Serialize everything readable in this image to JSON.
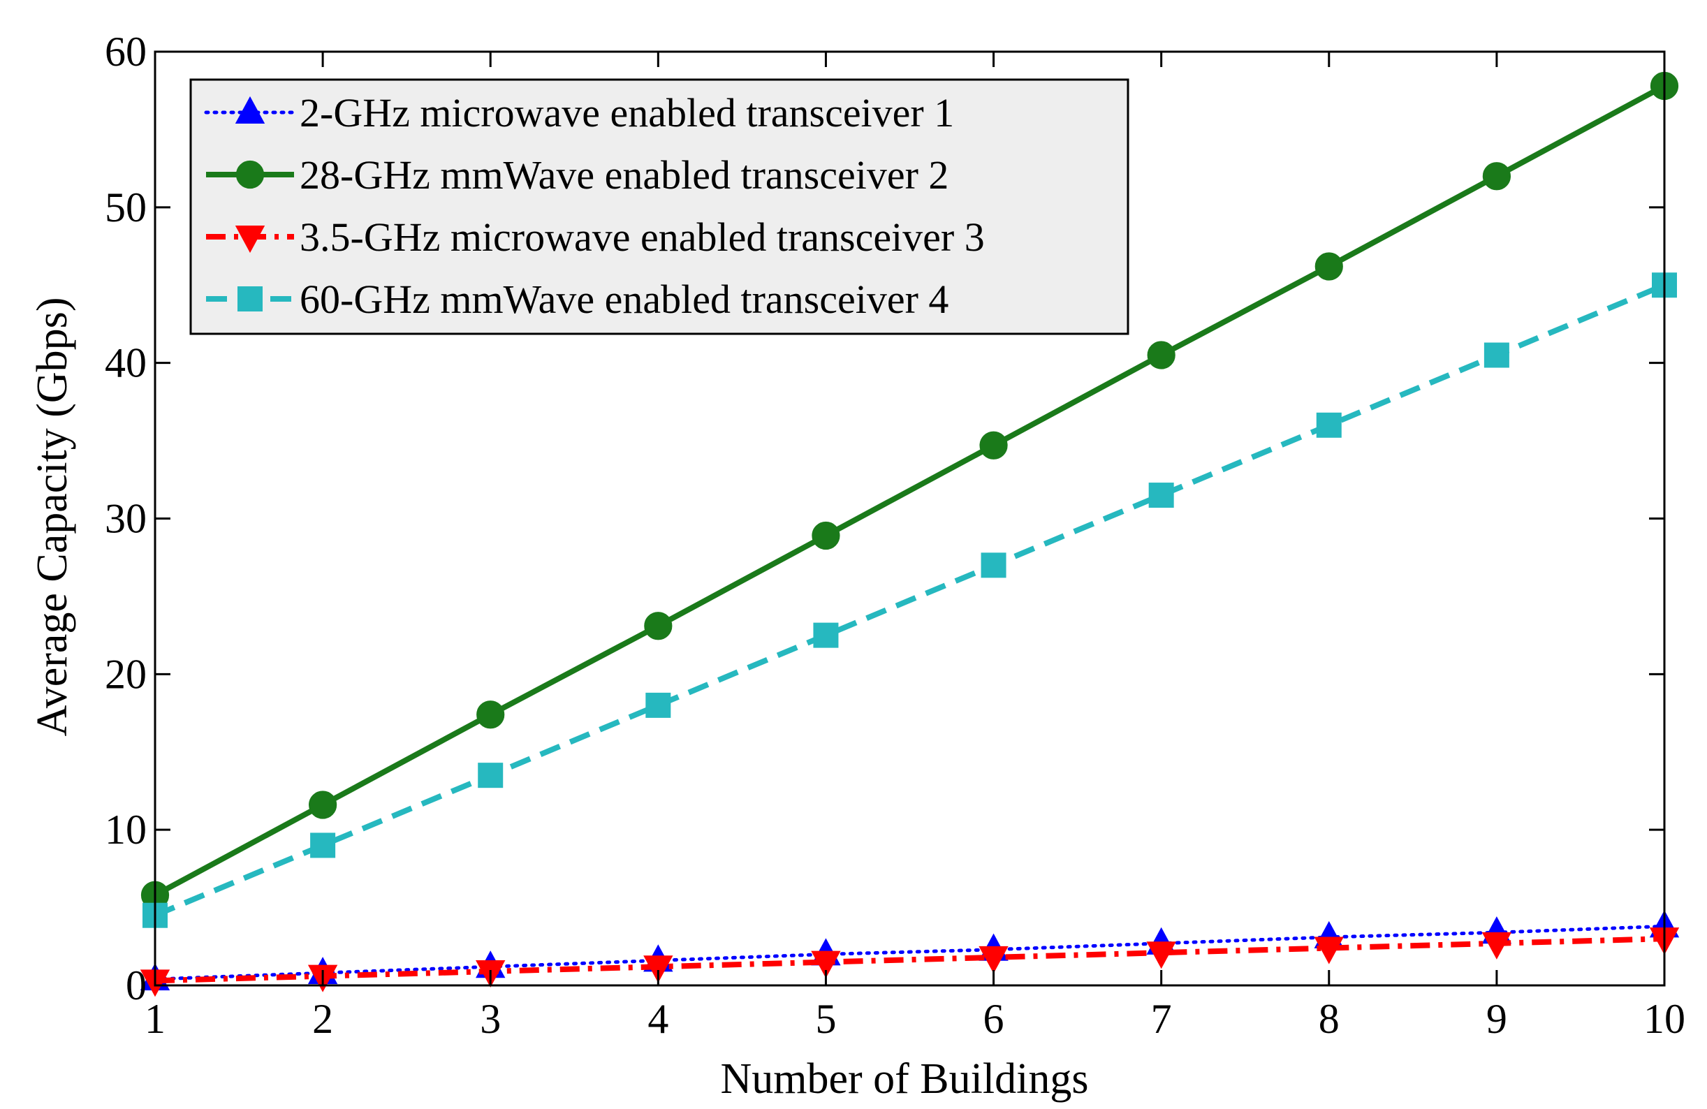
{
  "chart_data": {
    "type": "line",
    "title": "",
    "xlabel": "Number of Buildings",
    "ylabel": "Average Capacity (Gbps)",
    "xlim": [
      1,
      10
    ],
    "ylim": [
      0,
      60
    ],
    "xticks": [
      1,
      2,
      3,
      4,
      5,
      6,
      7,
      8,
      9,
      10
    ],
    "yticks": [
      0,
      10,
      20,
      30,
      40,
      50,
      60
    ],
    "grid": false,
    "legend_position": "top-left",
    "x": [
      1,
      2,
      3,
      4,
      5,
      6,
      7,
      8,
      9,
      10
    ],
    "series": [
      {
        "name": "2-GHz microwave enabled transceiver 1",
        "color": "#0000ff",
        "line_style": "dotted",
        "marker": "triangle-up",
        "values": [
          0.4,
          0.8,
          1.2,
          1.6,
          2.0,
          2.3,
          2.7,
          3.1,
          3.4,
          3.8
        ]
      },
      {
        "name": "28-GHz mmWave enabled transceiver 2",
        "color": "#1a7a1a",
        "line_style": "solid",
        "marker": "circle",
        "values": [
          5.8,
          11.6,
          17.4,
          23.1,
          28.9,
          34.7,
          40.5,
          46.2,
          52.0,
          57.8
        ]
      },
      {
        "name": "3.5-GHz microwave enabled transceiver 3",
        "color": "#ff0000",
        "line_style": "dash-dot",
        "marker": "triangle-down",
        "values": [
          0.3,
          0.6,
          0.9,
          1.2,
          1.5,
          1.8,
          2.1,
          2.4,
          2.7,
          3.0
        ]
      },
      {
        "name": "60-GHz mmWave enabled transceiver 4",
        "color": "#26b8bf",
        "line_style": "dashed",
        "marker": "square",
        "values": [
          4.5,
          9.0,
          13.5,
          18.0,
          22.5,
          27.0,
          31.5,
          36.0,
          40.5,
          45.0
        ]
      }
    ]
  }
}
